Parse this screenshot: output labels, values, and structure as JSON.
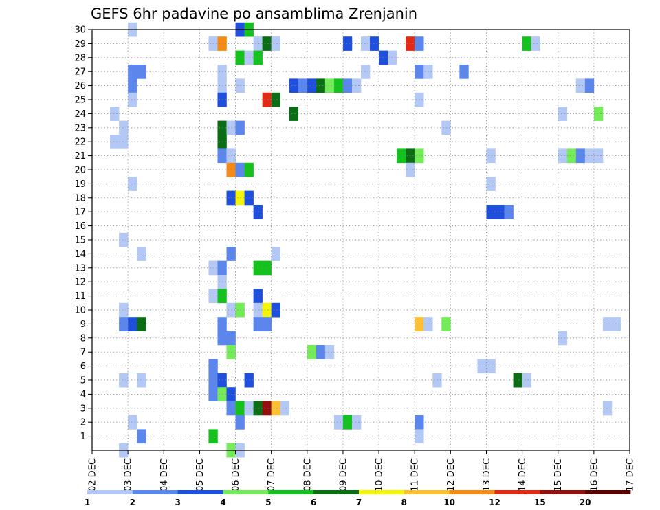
{
  "chart_data": {
    "type": "heatmap",
    "title": "GEFS 6hr padavine po ansamblima Zrenjanin",
    "xlabel": "",
    "ylabel": "",
    "x_tick_labels": [
      "02 DEC",
      "03 DEC",
      "04 DEC",
      "05 DEC",
      "06 DEC",
      "07 DEC",
      "08 DEC",
      "09 DEC",
      "10 DEC",
      "11 DEC",
      "12 DEC",
      "13 DEC",
      "14 DEC",
      "15 DEC",
      "16 DEC",
      "17 DEC"
    ],
    "x_unit": "6h steps from 02 DEC 00Z",
    "x_range": [
      0,
      60
    ],
    "y_range": [
      0,
      30
    ],
    "y_ticks": [
      1,
      2,
      3,
      4,
      5,
      6,
      7,
      8,
      9,
      10,
      11,
      12,
      13,
      14,
      15,
      16,
      17,
      18,
      19,
      20,
      21,
      22,
      23,
      24,
      25,
      26,
      27,
      28,
      29,
      30
    ],
    "grid": true,
    "colorbar": {
      "labels": [
        "1",
        "2",
        "3",
        "4",
        "5",
        "6",
        "7",
        "8",
        "10",
        "12",
        "15",
        "20"
      ],
      "colors": [
        "#b3c8f5",
        "#5b86ee",
        "#1f4fdd",
        "#74ec5a",
        "#14c21e",
        "#0b6e14",
        "#f5f50a",
        "#ffbf32",
        "#f58a14",
        "#e12a14",
        "#960f0f",
        "#5a0000"
      ]
    },
    "cells": [
      [
        4,
        30,
        0
      ],
      [
        16,
        30,
        2
      ],
      [
        17,
        30,
        4
      ],
      [
        13,
        29,
        0
      ],
      [
        14,
        29,
        8
      ],
      [
        18,
        29,
        0
      ],
      [
        19,
        29,
        5
      ],
      [
        20,
        29,
        0
      ],
      [
        28,
        29,
        2
      ],
      [
        30,
        29,
        0
      ],
      [
        31,
        29,
        2
      ],
      [
        35,
        29,
        9
      ],
      [
        36,
        29,
        1
      ],
      [
        48,
        29,
        4
      ],
      [
        49,
        29,
        0
      ],
      [
        16,
        28,
        4
      ],
      [
        17,
        28,
        0
      ],
      [
        18,
        28,
        4
      ],
      [
        32,
        28,
        2
      ],
      [
        33,
        28,
        0
      ],
      [
        4,
        27,
        1
      ],
      [
        5,
        27,
        1
      ],
      [
        14,
        27,
        0
      ],
      [
        30,
        27,
        0
      ],
      [
        36,
        27,
        1
      ],
      [
        37,
        27,
        0
      ],
      [
        41,
        27,
        1
      ],
      [
        4,
        26,
        1
      ],
      [
        14,
        26,
        0
      ],
      [
        16,
        26,
        0
      ],
      [
        22,
        26,
        2
      ],
      [
        23,
        26,
        1
      ],
      [
        24,
        26,
        2
      ],
      [
        25,
        26,
        5
      ],
      [
        26,
        26,
        3
      ],
      [
        27,
        26,
        4
      ],
      [
        28,
        26,
        1
      ],
      [
        29,
        26,
        0
      ],
      [
        54,
        26,
        0
      ],
      [
        55,
        26,
        1
      ],
      [
        4,
        25,
        0
      ],
      [
        14,
        25,
        2
      ],
      [
        19,
        25,
        9
      ],
      [
        20,
        25,
        5
      ],
      [
        36,
        25,
        0
      ],
      [
        2,
        24,
        0
      ],
      [
        22,
        24,
        5
      ],
      [
        52,
        24,
        0
      ],
      [
        56,
        24,
        3
      ],
      [
        3,
        23,
        0
      ],
      [
        14,
        23,
        5
      ],
      [
        15,
        23,
        0
      ],
      [
        16,
        23,
        1
      ],
      [
        39,
        23,
        0
      ],
      [
        2,
        22,
        0
      ],
      [
        3,
        22,
        0
      ],
      [
        14,
        22,
        5
      ],
      [
        14,
        21,
        1
      ],
      [
        15,
        21,
        0
      ],
      [
        34,
        21,
        4
      ],
      [
        35,
        21,
        5
      ],
      [
        36,
        21,
        3
      ],
      [
        44,
        21,
        0
      ],
      [
        52,
        21,
        0
      ],
      [
        53,
        21,
        3
      ],
      [
        54,
        21,
        1
      ],
      [
        55,
        21,
        0
      ],
      [
        56,
        21,
        0
      ],
      [
        15,
        20,
        8
      ],
      [
        16,
        20,
        1
      ],
      [
        17,
        20,
        4
      ],
      [
        35,
        20,
        0
      ],
      [
        4,
        19,
        0
      ],
      [
        44,
        19,
        0
      ],
      [
        15,
        18,
        2
      ],
      [
        16,
        18,
        6
      ],
      [
        17,
        18,
        2
      ],
      [
        18,
        17,
        2
      ],
      [
        44,
        17,
        2
      ],
      [
        45,
        17,
        2
      ],
      [
        46,
        17,
        1
      ],
      [
        3,
        15,
        0
      ],
      [
        5,
        14,
        0
      ],
      [
        15,
        14,
        1
      ],
      [
        20,
        14,
        0
      ],
      [
        13,
        13,
        0
      ],
      [
        14,
        13,
        1
      ],
      [
        18,
        13,
        4
      ],
      [
        19,
        13,
        4
      ],
      [
        14,
        12,
        0
      ],
      [
        13,
        11,
        0
      ],
      [
        14,
        11,
        4
      ],
      [
        18,
        11,
        2
      ],
      [
        3,
        10,
        0
      ],
      [
        15,
        10,
        0
      ],
      [
        16,
        10,
        3
      ],
      [
        18,
        10,
        0
      ],
      [
        19,
        10,
        6
      ],
      [
        20,
        10,
        2
      ],
      [
        3,
        9,
        1
      ],
      [
        4,
        9,
        2
      ],
      [
        5,
        9,
        5
      ],
      [
        14,
        9,
        1
      ],
      [
        18,
        9,
        1
      ],
      [
        19,
        9,
        1
      ],
      [
        36,
        9,
        7
      ],
      [
        37,
        9,
        0
      ],
      [
        39,
        9,
        3
      ],
      [
        57,
        9,
        0
      ],
      [
        58,
        9,
        0
      ],
      [
        14,
        8,
        1
      ],
      [
        15,
        8,
        1
      ],
      [
        52,
        8,
        0
      ],
      [
        15,
        7,
        3
      ],
      [
        24,
        7,
        3
      ],
      [
        25,
        7,
        1
      ],
      [
        26,
        7,
        0
      ],
      [
        13,
        6,
        1
      ],
      [
        43,
        6,
        0
      ],
      [
        44,
        6,
        0
      ],
      [
        3,
        5,
        0
      ],
      [
        5,
        5,
        0
      ],
      [
        13,
        5,
        1
      ],
      [
        14,
        5,
        2
      ],
      [
        17,
        5,
        2
      ],
      [
        38,
        5,
        0
      ],
      [
        47,
        5,
        5
      ],
      [
        48,
        5,
        0
      ],
      [
        13,
        4,
        1
      ],
      [
        14,
        4,
        3
      ],
      [
        15,
        4,
        2
      ],
      [
        15,
        3,
        1
      ],
      [
        16,
        3,
        4
      ],
      [
        17,
        3,
        0
      ],
      [
        18,
        3,
        5
      ],
      [
        19,
        3,
        10
      ],
      [
        20,
        3,
        7
      ],
      [
        21,
        3,
        0
      ],
      [
        57,
        3,
        0
      ],
      [
        4,
        2,
        0
      ],
      [
        16,
        2,
        1
      ],
      [
        27,
        2,
        0
      ],
      [
        28,
        2,
        4
      ],
      [
        29,
        2,
        0
      ],
      [
        36,
        2,
        1
      ],
      [
        5,
        1,
        1
      ],
      [
        13,
        1,
        4
      ],
      [
        36,
        1,
        0
      ],
      [
        3,
        0,
        0
      ],
      [
        15,
        0,
        3
      ],
      [
        16,
        0,
        0
      ]
    ]
  }
}
